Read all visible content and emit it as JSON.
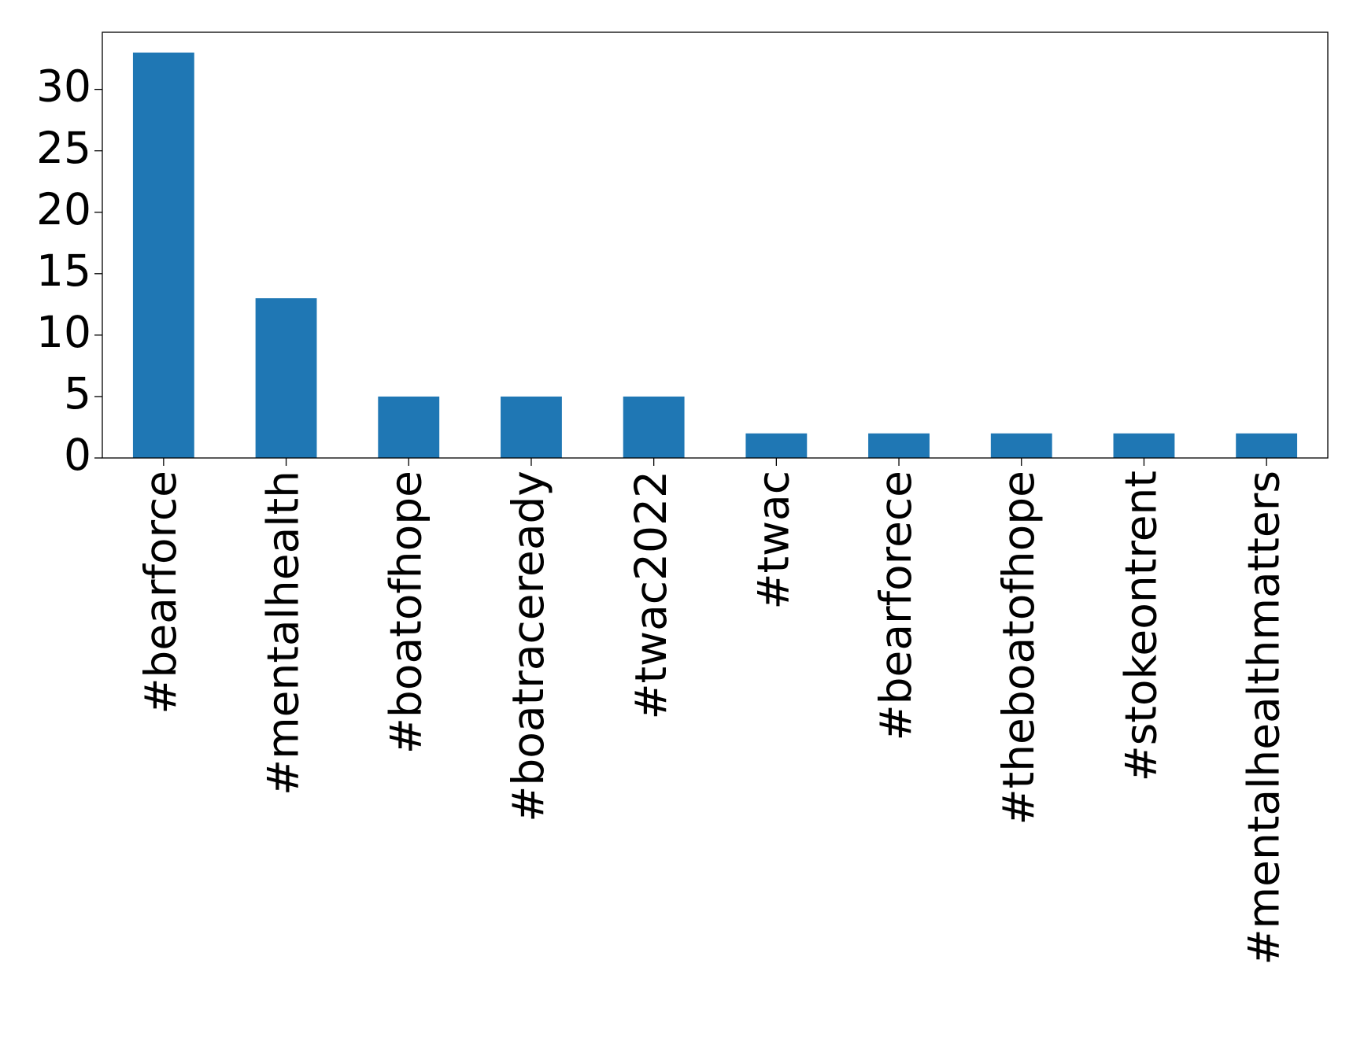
{
  "chart_data": {
    "type": "bar",
    "categories": [
      "#bearforce",
      "#mentalhealth",
      "#boatofhope",
      "#boatraceready",
      "#twac2022",
      "#twac",
      "#bearforece",
      "#theboatofhope",
      "#stokeontrent",
      "#mentalhealthmatters"
    ],
    "values": [
      33,
      13,
      5,
      5,
      5,
      2,
      2,
      2,
      2,
      2
    ],
    "color": "#1f77b4",
    "ylim": [
      0,
      34.65
    ],
    "yticks": [
      0,
      5,
      10,
      15,
      20,
      25,
      30
    ],
    "grid": false
  }
}
